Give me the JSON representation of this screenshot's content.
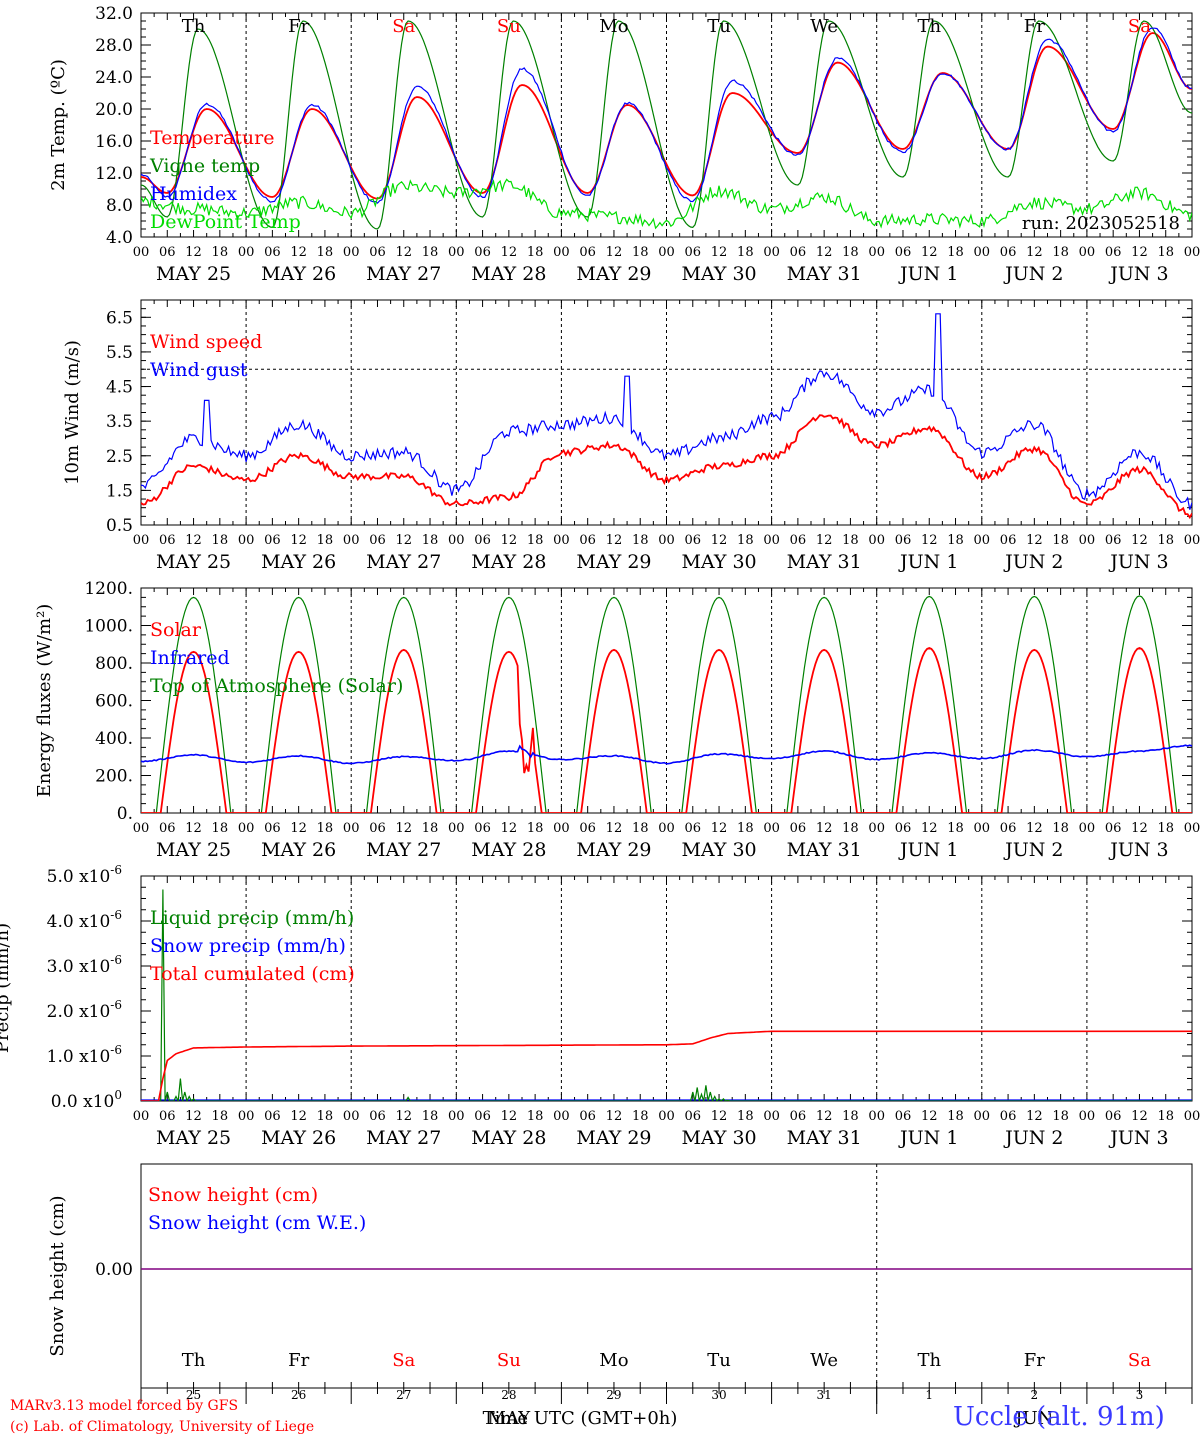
{
  "chart_data": [
    {
      "type": "line",
      "ylabel": "2m Temp. (ºC)",
      "ylim": [
        4.0,
        32.0
      ],
      "yticks": [
        "4.0",
        "8.0",
        "12.0",
        "16.0",
        "20.0",
        "24.0",
        "28.0",
        "32.0"
      ],
      "annotation": "run: 2023052518",
      "legend_placement": "left",
      "series": [
        {
          "name": "Temperature",
          "color": "#ff0000",
          "x_hours": [
            0,
            6,
            15,
            30,
            39,
            54,
            63,
            78,
            87,
            102,
            111,
            126,
            135,
            150,
            159,
            174,
            183,
            198,
            207,
            222,
            231,
            240
          ],
          "values": [
            11.5,
            9.5,
            20,
            9,
            20,
            8.8,
            21.5,
            9.5,
            23,
            9.5,
            20.5,
            9.2,
            22,
            14.5,
            25.8,
            15,
            24.5,
            15,
            27.8,
            17.5,
            29.5,
            22.5
          ]
        },
        {
          "name": "Vigne temp",
          "color": "#008000",
          "x_hours": [
            0,
            6,
            13,
            30,
            37,
            54,
            61,
            78,
            85,
            102,
            109,
            126,
            133,
            150,
            157,
            174,
            181,
            198,
            205,
            222,
            229,
            240
          ],
          "values": [
            10.5,
            6.5,
            30,
            5.2,
            31,
            5.0,
            31,
            6.5,
            31,
            6.5,
            31,
            5.2,
            31,
            10.5,
            31,
            11.5,
            31,
            11.5,
            31,
            13.5,
            31,
            19.5
          ]
        },
        {
          "name": "Humidex",
          "color": "#0000ff",
          "x_hours": [
            0,
            6,
            15,
            30,
            39,
            54,
            63,
            78,
            87,
            102,
            111,
            126,
            135,
            150,
            159,
            174,
            183,
            198,
            207,
            222,
            231,
            240
          ],
          "values": [
            11.8,
            9.0,
            20.6,
            8.5,
            20.5,
            8.3,
            22.8,
            9.0,
            25,
            9.2,
            20.7,
            8.5,
            23.5,
            14.2,
            26.3,
            14.6,
            24.5,
            15.0,
            28.7,
            17.2,
            30.2,
            22.5
          ]
        },
        {
          "name": "DewPoint Temp",
          "color": "#00dd00",
          "x_hours": [
            0,
            12,
            24,
            36,
            48,
            60,
            72,
            84,
            96,
            108,
            120,
            132,
            144,
            156,
            168,
            180,
            192,
            204,
            216,
            228,
            240
          ],
          "values": [
            8.5,
            7.5,
            7.0,
            8.3,
            7.0,
            10.3,
            9.5,
            10.5,
            7.0,
            6.5,
            5.8,
            9.8,
            7.5,
            9.0,
            6.0,
            6.2,
            6.0,
            8.3,
            7.5,
            9.5,
            6.8
          ]
        }
      ]
    },
    {
      "type": "line",
      "ylabel": "10m Wind (m/s)",
      "ylim": [
        0.5,
        7.0
      ],
      "yticks": [
        "0.5",
        "1.5",
        "2.5",
        "3.5",
        "4.5",
        "5.5",
        "6.5"
      ],
      "reference_line": 5.0,
      "legend_placement": "left",
      "series": [
        {
          "name": "Wind speed",
          "color": "#ff0000",
          "x_hours": [
            0,
            12,
            24,
            36,
            48,
            60,
            72,
            84,
            96,
            108,
            120,
            132,
            144,
            156,
            168,
            180,
            192,
            204,
            216,
            228,
            240
          ],
          "values": [
            1.1,
            2.2,
            1.8,
            2.5,
            1.9,
            1.9,
            1.1,
            1.3,
            2.6,
            2.8,
            1.8,
            2.2,
            2.5,
            3.7,
            2.8,
            3.3,
            1.9,
            2.7,
            1.1,
            2.1,
            0.8
          ]
        },
        {
          "name": "Wind gust",
          "color": "#0000ff",
          "x_hours": [
            0,
            12,
            24,
            36,
            48,
            60,
            72,
            84,
            96,
            108,
            120,
            132,
            144,
            156,
            168,
            180,
            192,
            204,
            216,
            228,
            240
          ],
          "values": [
            1.6,
            3.0,
            2.5,
            3.4,
            2.5,
            2.6,
            1.5,
            3.2,
            3.4,
            3.6,
            2.5,
            3.0,
            3.6,
            4.9,
            3.8,
            4.4,
            2.6,
            3.4,
            1.4,
            2.6,
            1.1
          ]
        }
      ]
    },
    {
      "type": "line",
      "ylabel": "Energy fluxes (W/m²)",
      "ylim": [
        0,
        1200
      ],
      "yticks": [
        "0.",
        "200.",
        "400.",
        "600.",
        "800.",
        "1000.",
        "1200."
      ],
      "legend_placement": "left",
      "series": [
        {
          "name": "Solar",
          "color": "#ff0000",
          "daily_peak": [
            860,
            860,
            870,
            860,
            870,
            870,
            870,
            880,
            870,
            880
          ],
          "note_peak_day": 3
        },
        {
          "name": "Infrared",
          "color": "#0000ff",
          "x_hours": [
            0,
            12,
            24,
            36,
            48,
            60,
            72,
            84,
            96,
            108,
            120,
            132,
            144,
            156,
            168,
            180,
            192,
            204,
            216,
            228,
            240
          ],
          "values": [
            275,
            310,
            270,
            305,
            265,
            300,
            280,
            330,
            285,
            305,
            265,
            315,
            290,
            330,
            285,
            320,
            290,
            335,
            300,
            330,
            360
          ]
        },
        {
          "name": "Top of Atmosphere (Solar)",
          "color": "#008000",
          "daily_peak": [
            1150,
            1150,
            1150,
            1150,
            1150,
            1150,
            1150,
            1155,
            1155,
            1158
          ]
        }
      ]
    },
    {
      "type": "line",
      "ylabel": "Precip (mm/h)",
      "ylim": [
        0,
        5.0
      ],
      "yticks": [
        "0.0",
        "1.0",
        "2.0",
        "3.0",
        "4.0",
        "5.0"
      ],
      "ytick_exponent": [
        "0",
        "-6",
        "-6",
        "-6",
        "-6",
        "-6"
      ],
      "legend_placement": "left",
      "series": [
        {
          "name": "Liquid precip (mm/h)",
          "color": "#008000",
          "x_hours": [
            4,
            5,
            6,
            7,
            8,
            9,
            10,
            11,
            12,
            13,
            14,
            125,
            126,
            127,
            128,
            129,
            130,
            131,
            132,
            133,
            134,
            135
          ],
          "values": [
            0,
            4.7,
            0.2,
            0,
            0.1,
            0.5,
            0.2,
            0.1,
            0.05,
            0,
            0,
            0,
            0.2,
            0.3,
            0.15,
            0.35,
            0.2,
            0.1,
            0.05,
            0.05,
            0.02,
            0
          ]
        },
        {
          "name": "Snow precip (mm/h)",
          "color": "#0000ff",
          "x_hours": [
            0,
            240
          ],
          "values": [
            0,
            0
          ]
        },
        {
          "name": "Total cumulated (cm)",
          "color": "#ff0000",
          "x_hours": [
            0,
            4,
            5,
            6,
            8,
            12,
            24,
            48,
            72,
            96,
            120,
            126,
            130,
            134,
            144,
            168,
            192,
            216,
            240
          ],
          "values": [
            0,
            0,
            0.5,
            0.9,
            1.05,
            1.18,
            1.2,
            1.22,
            1.23,
            1.24,
            1.25,
            1.27,
            1.4,
            1.5,
            1.55,
            1.55,
            1.55,
            1.55,
            1.55
          ]
        }
      ]
    },
    {
      "type": "line",
      "ylabel": "Snow height (cm)",
      "yticks": [
        "0.00"
      ],
      "legend_placement": "left",
      "series": [
        {
          "name": "Snow height (cm)",
          "color": "#ff0000",
          "x_hours": [
            0,
            240
          ],
          "values": [
            0,
            0
          ]
        },
        {
          "name": "Snow height (cm W.E.)",
          "color": "#0000ff",
          "x_hours": [
            0,
            240
          ],
          "values": [
            0,
            0
          ]
        }
      ]
    }
  ],
  "x_axis": {
    "hour_ticks": [
      "00",
      "06",
      "12",
      "18"
    ],
    "final_tick": "00",
    "dates": [
      "MAY 25",
      "MAY 26",
      "MAY 27",
      "MAY 28",
      "MAY 29",
      "MAY 30",
      "MAY 31",
      "JUN  1",
      "JUN  2",
      "JUN  3"
    ],
    "weekdays": [
      "Th",
      "Fr",
      "Sa",
      "Su",
      "Mo",
      "Tu",
      "We",
      "Th",
      "Fr",
      "Sa"
    ],
    "weekday_colors": [
      "#000000",
      "#000000",
      "#ff0000",
      "#ff0000",
      "#000000",
      "#000000",
      "#000000",
      "#000000",
      "#000000",
      "#ff0000"
    ],
    "day_numbers": [
      "25",
      "26",
      "27",
      "28",
      "29",
      "30",
      "31",
      "1",
      "2",
      "3"
    ],
    "month_left": "MAY",
    "month_right": "JUN",
    "title": "Time UTC (GMT+0h)"
  },
  "footer": {
    "line1": "MARv3.13 model forced by GFS",
    "line2": "(c) Lab. of Climatology, University of Liege",
    "station": "Uccle (alt. 91m)"
  },
  "colors": {
    "red": "#ff0000",
    "green": "#008000",
    "blue": "#0000ff",
    "lightgreen": "#00dd00",
    "purple": "#800080"
  }
}
